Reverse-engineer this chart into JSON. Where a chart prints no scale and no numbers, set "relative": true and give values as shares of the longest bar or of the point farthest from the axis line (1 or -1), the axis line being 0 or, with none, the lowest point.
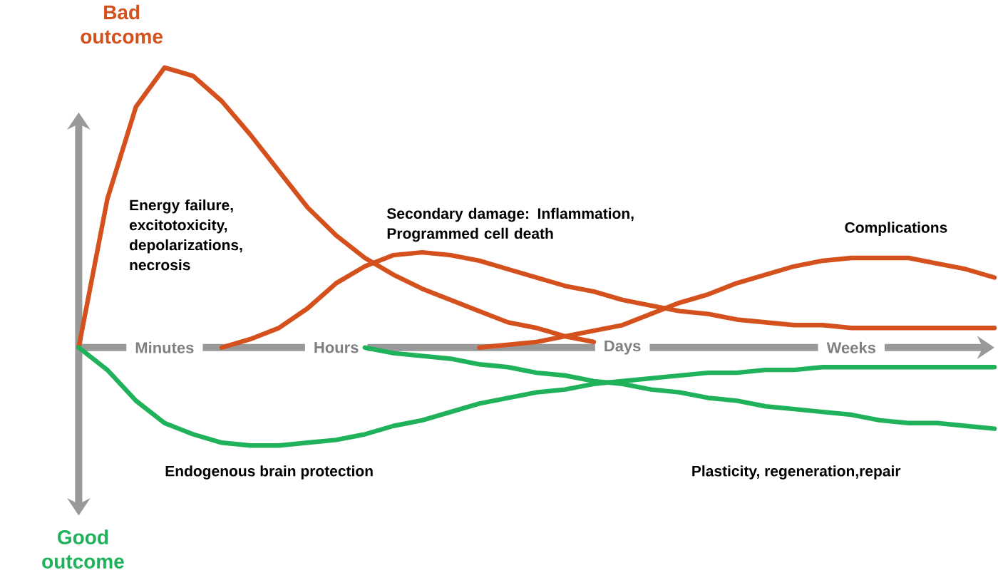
{
  "chart_data": {
    "type": "line",
    "relative": true,
    "line_style": "solid",
    "categories": [
      null,
      null,
      null,
      "Minutes",
      null,
      null,
      null,
      null,
      null,
      "Hours",
      null,
      null,
      null,
      null,
      null,
      null,
      null,
      null,
      null,
      "Days",
      null,
      null,
      null,
      null,
      null,
      null,
      null,
      "Weeks",
      null,
      null,
      null,
      null,
      null
    ],
    "annotations": [
      "Bad outcome",
      "Good outcome"
    ],
    "series": [
      {
        "name": "Energy failure, excitotoxicity, depolarizations, necrosis",
        "color": "#d4501c",
        "values": [
          0,
          0.53,
          0.86,
          1,
          0.97,
          0.88,
          0.76,
          0.63,
          0.5,
          0.4,
          0.32,
          0.26,
          0.21,
          0.17,
          0.13,
          0.09,
          0.07,
          0.04,
          0.02,
          null,
          null,
          null,
          null,
          null,
          null,
          null,
          null,
          null,
          null,
          null,
          null,
          null,
          null
        ]
      },
      {
        "name": "Secondary damage: Inflammation, Programmed cell death",
        "color": "#d4501c",
        "values": [
          null,
          null,
          null,
          null,
          null,
          0,
          0.03,
          0.07,
          0.14,
          0.23,
          0.29,
          0.33,
          0.34,
          0.33,
          0.31,
          0.28,
          0.25,
          0.22,
          0.2,
          0.17,
          0.15,
          0.13,
          0.12,
          0.1,
          0.09,
          0.08,
          0.08,
          0.07,
          0.07,
          0.07,
          0.07,
          0.07,
          0.07
        ]
      },
      {
        "name": "Complications",
        "color": "#d4501c",
        "values": [
          null,
          null,
          null,
          null,
          null,
          null,
          null,
          null,
          null,
          null,
          null,
          null,
          null,
          null,
          0,
          0.01,
          0.02,
          0.04,
          0.06,
          0.08,
          0.12,
          0.16,
          0.19,
          0.23,
          0.26,
          0.29,
          0.31,
          0.32,
          0.32,
          0.32,
          0.3,
          0.28,
          0.25
        ]
      },
      {
        "name": "Endogenous brain protection",
        "color": "#1fb25a",
        "values": [
          0,
          -0.08,
          -0.19,
          -0.27,
          -0.31,
          -0.34,
          -0.35,
          -0.35,
          -0.34,
          -0.33,
          -0.31,
          -0.28,
          -0.26,
          -0.23,
          -0.2,
          -0.18,
          -0.16,
          -0.15,
          -0.13,
          -0.12,
          -0.11,
          -0.1,
          -0.09,
          -0.09,
          -0.08,
          -0.08,
          -0.07,
          -0.07,
          -0.07,
          -0.07,
          -0.07,
          -0.07,
          -0.07
        ]
      },
      {
        "name": "Plasticity, regeneration,repair",
        "color": "#1fb25a",
        "values": [
          null,
          null,
          null,
          null,
          null,
          null,
          null,
          null,
          null,
          null,
          0,
          -0.02,
          -0.03,
          -0.04,
          -0.06,
          -0.07,
          -0.09,
          -0.1,
          -0.12,
          -0.13,
          -0.15,
          -0.16,
          -0.18,
          -0.19,
          -0.21,
          -0.22,
          -0.23,
          -0.24,
          -0.26,
          -0.27,
          -0.27,
          -0.28,
          -0.29
        ]
      }
    ]
  }
}
